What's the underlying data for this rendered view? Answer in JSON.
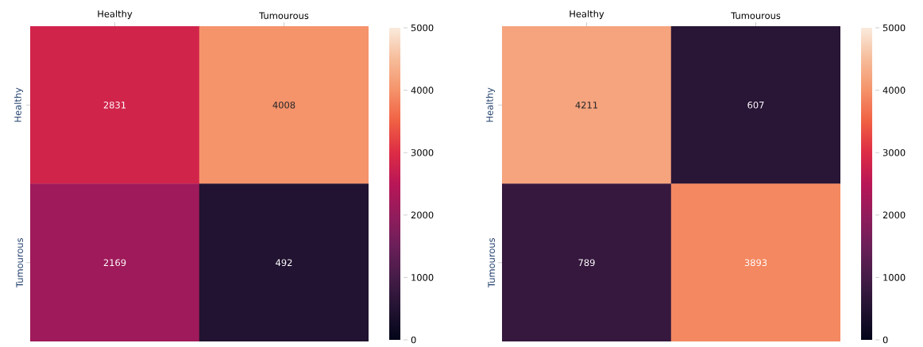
{
  "chart_data": [
    {
      "type": "heatmap",
      "categories": [
        "Healthy",
        "Tumourous"
      ],
      "y_categories": [
        "Healthy",
        "Tumourous"
      ],
      "cells": [
        [
          2831,
          4008
        ],
        [
          2169,
          492
        ]
      ],
      "clim": [
        0,
        5000
      ],
      "cticks": [
        0,
        1000,
        2000,
        3000,
        4000,
        5000
      ],
      "data_labels": true
    },
    {
      "type": "heatmap",
      "categories": [
        "Healthy",
        "Tumourous"
      ],
      "y_categories": [
        "Healthy",
        "Tumourous"
      ],
      "cells": [
        [
          4211,
          607
        ],
        [
          789,
          3893
        ]
      ],
      "clim": [
        0,
        5000
      ],
      "cticks": [
        0,
        1000,
        2000,
        3000,
        4000,
        5000
      ],
      "data_labels": true
    }
  ]
}
